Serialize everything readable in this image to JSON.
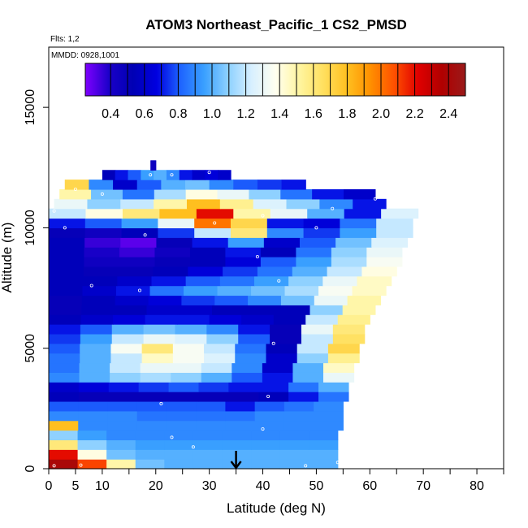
{
  "chart_data": {
    "type": "heatmap",
    "title": "ATOM3 Northeast_Pacific_1 CS2_PMSD",
    "flights_note": "Flts: 1,2",
    "mmdd_note": "MMDD: 0928,1001",
    "xlabel": "Latitude (deg N)",
    "ylabel": "Altitude (m)",
    "xlim": [
      0,
      85
    ],
    "ylim": [
      0,
      17500
    ],
    "x_ticks": [
      0,
      5,
      10,
      20,
      30,
      40,
      50,
      60,
      70,
      80
    ],
    "x_minor_ticks": [
      15,
      25,
      35,
      45,
      55,
      65,
      75,
      85
    ],
    "y_ticks": [
      0,
      5000,
      10000,
      15000
    ],
    "colorbar": {
      "range": [
        0.25,
        2.5
      ],
      "ticks": [
        "0.4",
        "0.6",
        "0.8",
        "1.0",
        "1.2",
        "1.4",
        "1.6",
        "1.8",
        "2.0",
        "2.2",
        "2.4"
      ],
      "tick_values": [
        0.4,
        0.6,
        0.8,
        1.0,
        1.2,
        1.4,
        1.6,
        1.8,
        2.0,
        2.2,
        2.4
      ],
      "colors": [
        "#7f00ff",
        "#1a00c8",
        "#0000b4",
        "#0000e0",
        "#1e64ff",
        "#3aa0ff",
        "#8cd0ff",
        "#d8f0ff",
        "#fffff0",
        "#fff5a0",
        "#ffe060",
        "#ffc020",
        "#ff9000",
        "#ff5000",
        "#e00000",
        "#b00000",
        "#9a1a1a"
      ]
    },
    "marker_latitude": 35,
    "layers": [
      {
        "alt": [
          0,
          400
        ],
        "lat": [
          0,
          54
        ],
        "values": [
          2.4,
          2.1,
          1.5,
          1.05,
          1.0,
          1.0,
          1.0,
          1.0,
          1.0,
          1.0
        ]
      },
      {
        "alt": [
          400,
          800
        ],
        "lat": [
          0,
          54
        ],
        "values": [
          2.2,
          1.4,
          1.05,
          1.0,
          1.0,
          1.0,
          1.0,
          1.0,
          1.0,
          1.0
        ]
      },
      {
        "alt": [
          800,
          1200
        ],
        "lat": [
          0,
          54
        ],
        "values": [
          1.6,
          1.1,
          1.0,
          0.95,
          0.95,
          0.95,
          0.95,
          0.95,
          0.95,
          0.95
        ]
      },
      {
        "alt": [
          1200,
          1600
        ],
        "lat": [
          0,
          54
        ],
        "values": [
          1.1,
          0.95,
          0.9,
          0.9,
          0.9,
          0.9,
          0.9,
          0.9,
          0.9,
          0.9
        ]
      },
      {
        "alt": [
          1600,
          2000
        ],
        "lat": [
          0,
          55
        ],
        "values": [
          1.8,
          0.9,
          0.9,
          0.9,
          0.9,
          0.9,
          0.9,
          0.9,
          0.9,
          0.9
        ]
      },
      {
        "alt": [
          2000,
          2400
        ],
        "lat": [
          0,
          55
        ],
        "values": [
          0.9,
          0.9,
          0.9,
          0.85,
          0.85,
          0.85,
          0.85,
          0.9,
          0.9,
          0.9
        ]
      },
      {
        "alt": [
          2400,
          2800
        ],
        "lat": [
          0,
          55
        ],
        "values": [
          0.8,
          0.8,
          0.8,
          0.8,
          0.8,
          0.8,
          0.7,
          0.8,
          0.85,
          0.9
        ]
      },
      {
        "alt": [
          2800,
          3200
        ],
        "lat": [
          0,
          56
        ],
        "values": [
          0.55,
          0.5,
          0.5,
          0.5,
          0.5,
          0.5,
          0.5,
          0.55,
          0.7,
          0.85
        ]
      },
      {
        "alt": [
          3200,
          3600
        ],
        "lat": [
          0,
          56
        ],
        "values": [
          0.6,
          0.65,
          0.7,
          0.75,
          0.8,
          0.75,
          0.7,
          0.7,
          0.85,
          1.0
        ]
      },
      {
        "alt": [
          3600,
          4000
        ],
        "lat": [
          0,
          57
        ],
        "values": [
          0.9,
          1.0,
          1.1,
          1.15,
          1.1,
          1.0,
          0.8,
          0.7,
          1.0,
          1.3
        ]
      },
      {
        "alt": [
          4000,
          4400
        ],
        "lat": [
          0,
          57
        ],
        "values": [
          0.85,
          1.0,
          1.2,
          1.3,
          1.3,
          1.2,
          0.9,
          0.6,
          1.0,
          1.45
        ]
      },
      {
        "alt": [
          4400,
          4800
        ],
        "lat": [
          0,
          58
        ],
        "values": [
          0.85,
          1.0,
          1.2,
          1.45,
          1.35,
          1.25,
          0.9,
          0.6,
          1.1,
          1.55
        ]
      },
      {
        "alt": [
          4800,
          5200
        ],
        "lat": [
          0,
          58
        ],
        "values": [
          0.8,
          1.0,
          1.35,
          1.6,
          1.35,
          1.2,
          0.85,
          0.55,
          1.2,
          1.7
        ]
      },
      {
        "alt": [
          5200,
          5600
        ],
        "lat": [
          0,
          59
        ],
        "values": [
          0.75,
          0.95,
          1.2,
          1.3,
          1.25,
          1.1,
          0.8,
          0.5,
          1.2,
          1.65
        ]
      },
      {
        "alt": [
          5600,
          6000
        ],
        "lat": [
          0,
          59
        ],
        "values": [
          0.7,
          0.8,
          1.0,
          1.05,
          1.0,
          0.9,
          0.7,
          0.5,
          1.3,
          1.6
        ]
      },
      {
        "alt": [
          6000,
          6400
        ],
        "lat": [
          0,
          60
        ],
        "values": [
          0.55,
          0.6,
          0.65,
          0.7,
          0.7,
          0.65,
          0.6,
          0.55,
          1.2,
          1.55
        ]
      },
      {
        "alt": [
          6400,
          6800
        ],
        "lat": [
          0,
          61
        ],
        "values": [
          0.5,
          0.55,
          0.55,
          0.6,
          0.6,
          0.55,
          0.55,
          0.55,
          1.1,
          1.5
        ]
      },
      {
        "alt": [
          6800,
          7200
        ],
        "lat": [
          0,
          62
        ],
        "values": [
          0.5,
          0.55,
          0.6,
          0.65,
          0.75,
          0.8,
          0.9,
          1.05,
          1.3,
          1.5
        ]
      },
      {
        "alt": [
          7200,
          7600
        ],
        "lat": [
          0,
          63
        ],
        "values": [
          0.55,
          0.6,
          0.7,
          0.85,
          0.95,
          1.0,
          1.05,
          1.15,
          1.35,
          1.45
        ]
      },
      {
        "alt": [
          7600,
          8000
        ],
        "lat": [
          0,
          64
        ],
        "values": [
          0.55,
          0.55,
          0.6,
          0.7,
          0.8,
          0.85,
          0.95,
          1.1,
          1.3,
          1.45
        ]
      },
      {
        "alt": [
          8000,
          8400
        ],
        "lat": [
          0,
          65
        ],
        "values": [
          0.55,
          0.5,
          0.5,
          0.55,
          0.65,
          0.75,
          0.85,
          1.0,
          1.2,
          1.4
        ]
      },
      {
        "alt": [
          8400,
          8800
        ],
        "lat": [
          0,
          66
        ],
        "values": [
          0.55,
          0.45,
          0.45,
          0.5,
          0.55,
          0.65,
          0.8,
          0.95,
          1.15,
          1.35
        ]
      },
      {
        "alt": [
          8800,
          9200
        ],
        "lat": [
          0,
          66
        ],
        "values": [
          0.55,
          0.4,
          0.35,
          0.45,
          0.55,
          0.7,
          0.55,
          0.85,
          1.1,
          1.3
        ]
      },
      {
        "alt": [
          9200,
          9600
        ],
        "lat": [
          0,
          67
        ],
        "values": [
          0.55,
          0.35,
          0.3,
          0.5,
          0.7,
          0.95,
          0.6,
          0.8,
          1.05,
          1.25
        ]
      },
      {
        "alt": [
          9600,
          10000
        ],
        "lat": [
          0,
          68
        ],
        "values": [
          0.5,
          0.45,
          0.55,
          0.75,
          1.2,
          1.6,
          0.9,
          0.75,
          0.95,
          1.2
        ]
      },
      {
        "alt": [
          10000,
          10400
        ],
        "lat": [
          0,
          68
        ],
        "values": [
          0.7,
          0.8,
          0.95,
          1.3,
          2.0,
          1.7,
          0.7,
          0.65,
          0.85,
          1.2
        ]
      },
      {
        "alt": [
          10400,
          10800
        ],
        "lat": [
          0,
          69
        ],
        "values": [
          1.2,
          1.4,
          1.6,
          1.8,
          2.2,
          1.5,
          1.3,
          1.0,
          0.7,
          1.25
        ]
      },
      {
        "alt": [
          10800,
          11200
        ],
        "lat": [
          1,
          63
        ],
        "values": [
          1.3,
          1.1,
          1.2,
          1.5,
          1.8,
          1.55,
          1.25,
          1.1,
          0.9,
          0.7
        ]
      },
      {
        "alt": [
          11200,
          11600
        ],
        "lat": [
          2,
          61
        ],
        "values": [
          1.5,
          1.05,
          0.85,
          1.15,
          1.4,
          1.3,
          1.1,
          0.85,
          0.7,
          0.6
        ]
      },
      {
        "alt": [
          11600,
          12000
        ],
        "lat": [
          3,
          48
        ],
        "values": [
          1.7,
          0.9,
          0.6,
          0.8,
          1.0,
          1.05,
          0.9,
          0.8,
          0.75,
          0.7
        ]
      },
      {
        "alt": [
          12000,
          12400
        ],
        "lat": [
          10,
          34
        ],
        "values": [
          0.55,
          0.7,
          0.8,
          0.95,
          1.0,
          0.9,
          0.7,
          0.6,
          0.65,
          0.6
        ]
      },
      {
        "alt": [
          12400,
          12800
        ],
        "lat": [
          19,
          20
        ],
        "values": [
          0.45,
          0.45,
          0.45,
          0.45,
          0.45,
          0.45,
          0.45,
          0.45,
          0.45,
          0.45
        ]
      }
    ],
    "sample_points": [
      [
        1,
        120
      ],
      [
        6,
        150
      ],
      [
        27,
        900
      ],
      [
        48,
        120
      ],
      [
        54,
        260
      ],
      [
        40,
        1650
      ],
      [
        23,
        1300
      ],
      [
        21,
        2700
      ],
      [
        41,
        3000
      ],
      [
        42,
        5200
      ],
      [
        43,
        7800
      ],
      [
        17,
        7400
      ],
      [
        8,
        7600
      ],
      [
        39,
        8800
      ],
      [
        18,
        9700
      ],
      [
        3,
        10000
      ],
      [
        31,
        10200
      ],
      [
        50,
        10000
      ],
      [
        40,
        10500
      ],
      [
        1,
        10700
      ],
      [
        53,
        10800
      ],
      [
        61,
        11200
      ],
      [
        64,
        11000
      ],
      [
        10,
        11400
      ],
      [
        5,
        11600
      ],
      [
        19,
        12200
      ],
      [
        23,
        12200
      ],
      [
        30,
        12300
      ],
      [
        9,
        12400
      ],
      [
        33,
        12500
      ]
    ]
  }
}
